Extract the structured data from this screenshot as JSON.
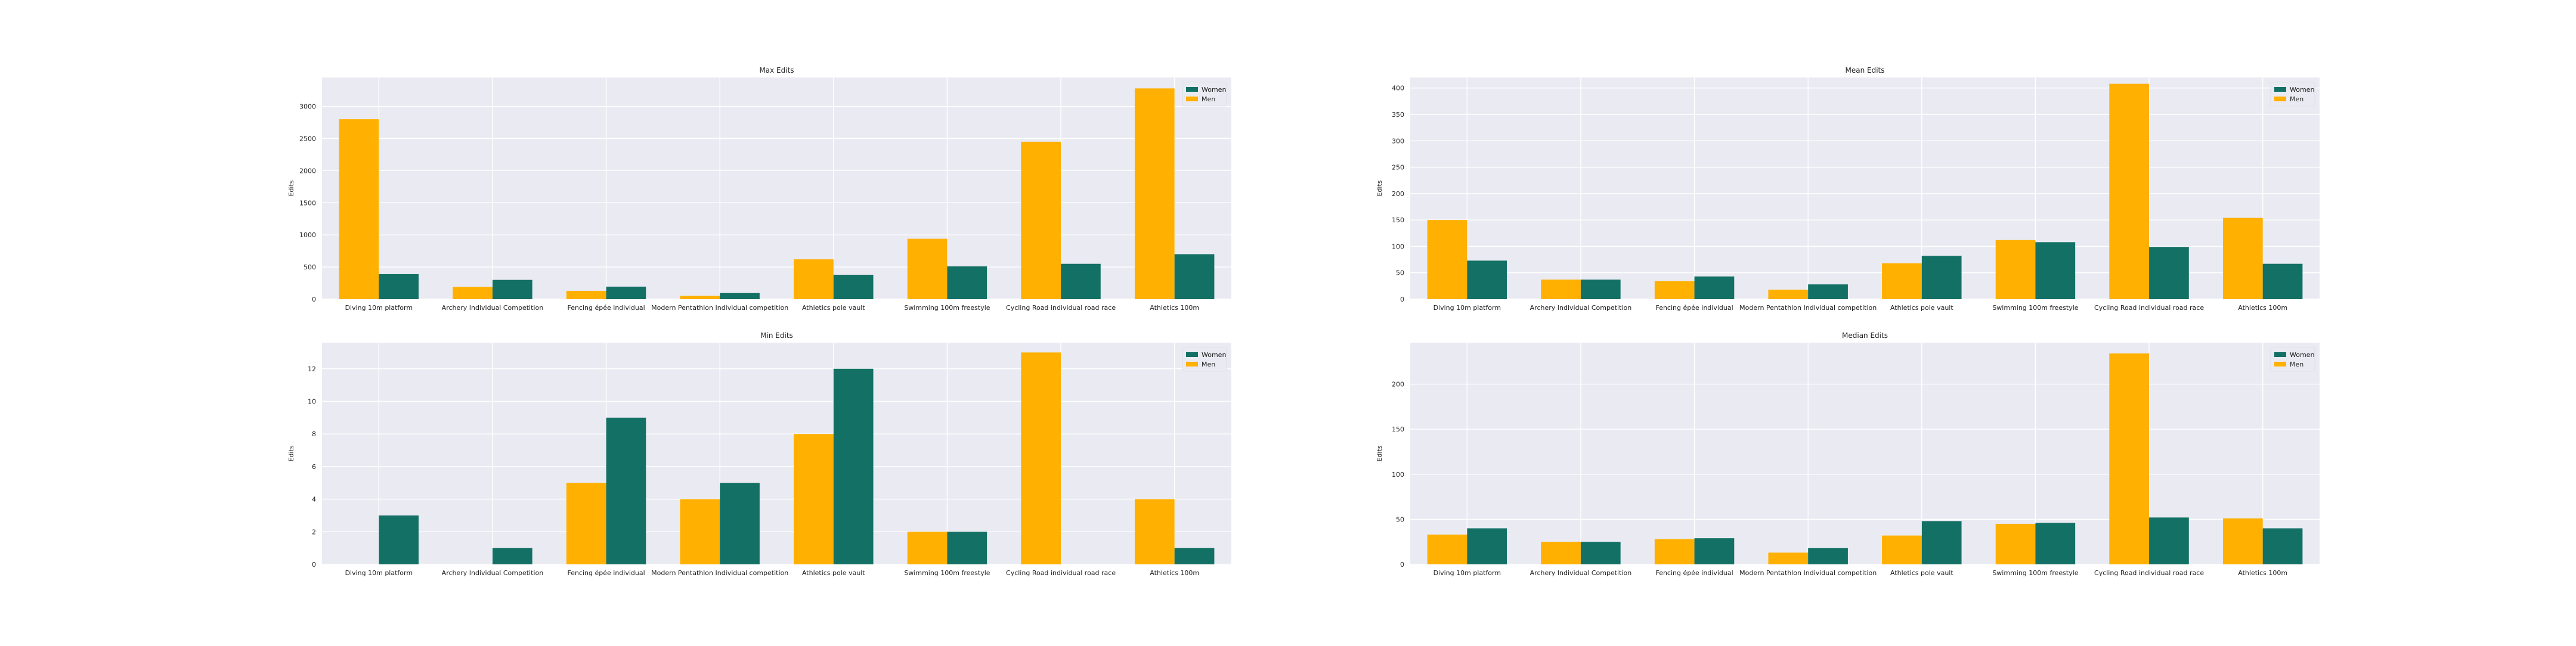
{
  "colors": {
    "women": "#137065",
    "men": "#FFB000",
    "plot_bg": "#EAEAF2",
    "grid": "#FFFFFF"
  },
  "chart_data": [
    {
      "type": "bar",
      "title": "Max Edits",
      "ylabel": "Edits",
      "xlabel": "",
      "ylim": [
        0,
        3450
      ],
      "yticks": [
        0,
        500,
        1000,
        1500,
        2000,
        2500,
        3000
      ],
      "grid": true,
      "legend_position": "top-right",
      "categories": [
        "Diving 10m platform",
        "Archery Individual Competition",
        "Fencing épée individual",
        "Modern Pentathlon Individual competition",
        "Athletics pole vault",
        "Swimming 100m freestyle",
        "Cycling Road individual road race",
        "Athletics 100m"
      ],
      "series": [
        {
          "name": "Men",
          "values": [
            2800,
            190,
            130,
            50,
            620,
            940,
            2450,
            3280
          ]
        },
        {
          "name": "Women",
          "values": [
            390,
            300,
            195,
            95,
            380,
            510,
            550,
            700
          ]
        }
      ]
    },
    {
      "type": "bar",
      "title": "Mean Edits",
      "ylabel": "Edits",
      "xlabel": "",
      "ylim": [
        0,
        420
      ],
      "yticks": [
        0,
        50,
        100,
        150,
        200,
        250,
        300,
        350,
        400
      ],
      "grid": true,
      "legend_position": "top-right",
      "categories": [
        "Diving 10m platform",
        "Archery Individual Competition",
        "Fencing épée individual",
        "Modern Pentathlon Individual competition",
        "Athletics pole vault",
        "Swimming 100m freestyle",
        "Cycling Road individual road race",
        "Athletics 100m"
      ],
      "series": [
        {
          "name": "Men",
          "values": [
            150,
            37,
            34,
            18,
            68,
            112,
            408,
            154
          ]
        },
        {
          "name": "Women",
          "values": [
            73,
            37,
            43,
            28,
            82,
            108,
            99,
            67
          ]
        }
      ]
    },
    {
      "type": "bar",
      "title": "Min Edits",
      "ylabel": "Edits",
      "xlabel": "",
      "ylim": [
        0,
        13.6
      ],
      "yticks": [
        0,
        2,
        4,
        6,
        8,
        10,
        12
      ],
      "grid": true,
      "legend_position": "top-right",
      "categories": [
        "Diving 10m platform",
        "Archery Individual Competition",
        "Fencing épée individual",
        "Modern Pentathlon Individual competition",
        "Athletics pole vault",
        "Swimming 100m freestyle",
        "Cycling Road individual road race",
        "Athletics 100m"
      ],
      "series": [
        {
          "name": "Men",
          "values": [
            0,
            0,
            5,
            4,
            8,
            2,
            13,
            4
          ]
        },
        {
          "name": "Women",
          "values": [
            3,
            1,
            9,
            5,
            12,
            2,
            0,
            1
          ]
        }
      ]
    },
    {
      "type": "bar",
      "title": "Median Edits",
      "ylabel": "Edits",
      "xlabel": "",
      "ylim": [
        0,
        246
      ],
      "yticks": [
        0,
        50,
        100,
        150,
        200
      ],
      "grid": true,
      "legend_position": "top-right",
      "categories": [
        "Diving 10m platform",
        "Archery Individual Competition",
        "Fencing épée individual",
        "Modern Pentathlon Individual competition",
        "Athletics pole vault",
        "Swimming 100m freestyle",
        "Cycling Road individual road race",
        "Athletics 100m"
      ],
      "series": [
        {
          "name": "Men",
          "values": [
            33,
            25,
            28,
            13,
            32,
            45,
            234,
            51
          ]
        },
        {
          "name": "Women",
          "values": [
            40,
            25,
            29,
            18,
            48,
            46,
            52,
            40
          ]
        }
      ]
    }
  ]
}
